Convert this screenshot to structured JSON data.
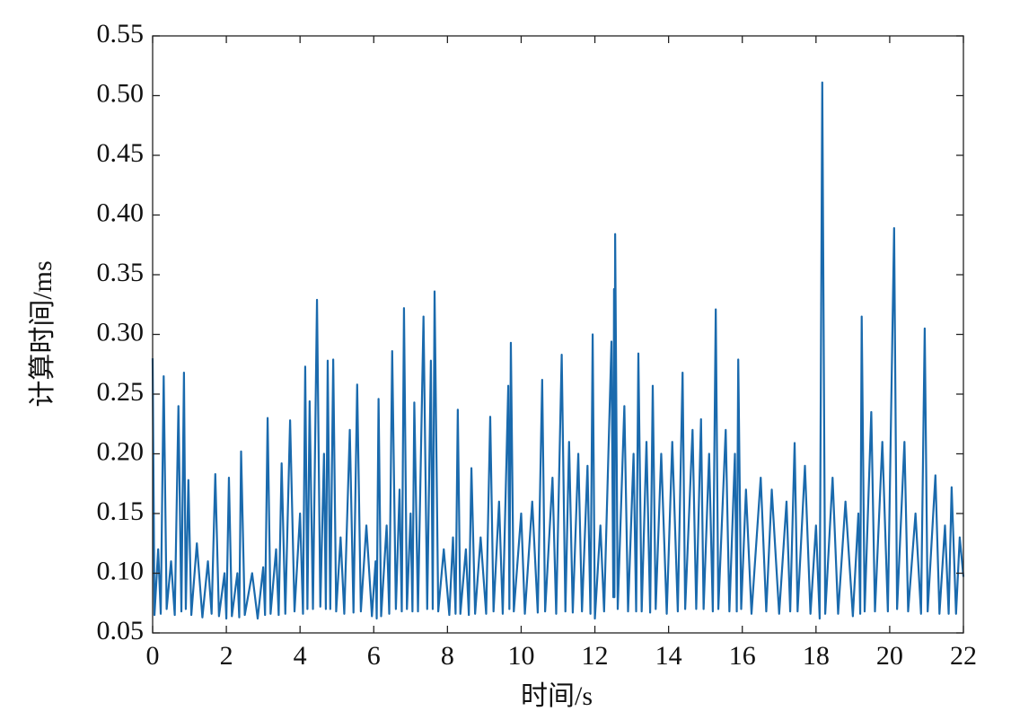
{
  "chart_data": {
    "type": "line",
    "x_label": "时间/s",
    "y_label": "计算时间/ms",
    "x": [
      0,
      0.05,
      0.15,
      0.22,
      0.3,
      0.38,
      0.5,
      0.6,
      0.7,
      0.78,
      0.85,
      0.9,
      0.97,
      1.05,
      1.2,
      1.35,
      1.5,
      1.6,
      1.7,
      1.8,
      1.95,
      2.0,
      2.07,
      2.15,
      2.3,
      2.35,
      2.4,
      2.5,
      2.7,
      2.85,
      3.0,
      3.05,
      3.12,
      3.2,
      3.35,
      3.42,
      3.5,
      3.6,
      3.73,
      3.85,
      4.0,
      4.08,
      4.14,
      4.2,
      4.26,
      4.35,
      4.46,
      4.55,
      4.65,
      4.7,
      4.75,
      4.82,
      4.9,
      4.98,
      5.1,
      5.2,
      5.35,
      5.45,
      5.55,
      5.65,
      5.8,
      5.95,
      6.05,
      6.08,
      6.13,
      6.2,
      6.35,
      6.42,
      6.5,
      6.6,
      6.7,
      6.76,
      6.82,
      6.9,
      7.0,
      7.05,
      7.1,
      7.2,
      7.35,
      7.45,
      7.55,
      7.6,
      7.65,
      7.75,
      7.9,
      8.05,
      8.15,
      8.22,
      8.28,
      8.35,
      8.5,
      8.58,
      8.65,
      8.75,
      8.9,
      9.05,
      9.16,
      9.25,
      9.4,
      9.5,
      9.65,
      9.68,
      9.72,
      9.8,
      10.0,
      10.1,
      10.3,
      10.45,
      10.57,
      10.65,
      10.85,
      10.95,
      11.1,
      11.2,
      11.3,
      11.4,
      11.55,
      11.65,
      11.8,
      11.88,
      11.94,
      12.0,
      12.15,
      12.25,
      12.45,
      12.5,
      12.52,
      12.53,
      12.55,
      12.62,
      12.8,
      12.9,
      13.05,
      13.12,
      13.18,
      13.27,
      13.4,
      13.5,
      13.57,
      13.65,
      13.8,
      13.95,
      14.1,
      14.25,
      14.38,
      14.45,
      14.65,
      14.75,
      14.88,
      14.95,
      15.1,
      15.2,
      15.28,
      15.35,
      15.55,
      15.65,
      15.8,
      15.85,
      15.89,
      15.97,
      16.1,
      16.25,
      16.5,
      16.65,
      16.8,
      17.0,
      17.2,
      17.3,
      17.42,
      17.5,
      17.7,
      17.85,
      18.0,
      18.1,
      18.17,
      18.25,
      18.45,
      18.6,
      18.8,
      19.0,
      19.15,
      19.2,
      19.24,
      19.32,
      19.5,
      19.6,
      19.8,
      19.95,
      20.12,
      20.2,
      20.4,
      20.5,
      20.7,
      20.85,
      20.95,
      21.03,
      21.24,
      21.35,
      21.5,
      21.6,
      21.68,
      21.8,
      21.9,
      22.0
    ],
    "series": [
      {
        "color": "#1a6aad",
        "values": [
          0.28,
          0.065,
          0.12,
          0.066,
          0.265,
          0.07,
          0.11,
          0.065,
          0.24,
          0.068,
          0.268,
          0.07,
          0.178,
          0.065,
          0.125,
          0.063,
          0.11,
          0.066,
          0.183,
          0.064,
          0.1,
          0.062,
          0.18,
          0.064,
          0.1,
          0.063,
          0.202,
          0.065,
          0.1,
          0.062,
          0.105,
          0.065,
          0.23,
          0.066,
          0.12,
          0.065,
          0.192,
          0.066,
          0.228,
          0.068,
          0.15,
          0.066,
          0.273,
          0.07,
          0.244,
          0.07,
          0.329,
          0.072,
          0.2,
          0.07,
          0.278,
          0.07,
          0.279,
          0.068,
          0.13,
          0.066,
          0.22,
          0.067,
          0.258,
          0.068,
          0.14,
          0.064,
          0.11,
          0.062,
          0.246,
          0.064,
          0.14,
          0.066,
          0.286,
          0.07,
          0.17,
          0.068,
          0.322,
          0.07,
          0.15,
          0.068,
          0.243,
          0.068,
          0.315,
          0.07,
          0.278,
          0.07,
          0.336,
          0.068,
          0.12,
          0.065,
          0.13,
          0.066,
          0.237,
          0.066,
          0.12,
          0.065,
          0.188,
          0.066,
          0.13,
          0.066,
          0.231,
          0.068,
          0.16,
          0.066,
          0.257,
          0.07,
          0.293,
          0.068,
          0.15,
          0.066,
          0.16,
          0.067,
          0.262,
          0.068,
          0.18,
          0.066,
          0.283,
          0.068,
          0.21,
          0.067,
          0.2,
          0.068,
          0.19,
          0.066,
          0.3,
          0.062,
          0.14,
          0.068,
          0.294,
          0.08,
          0.338,
          0.08,
          0.384,
          0.07,
          0.24,
          0.068,
          0.2,
          0.068,
          0.284,
          0.068,
          0.21,
          0.067,
          0.257,
          0.07,
          0.2,
          0.066,
          0.21,
          0.068,
          0.268,
          0.07,
          0.22,
          0.07,
          0.229,
          0.07,
          0.2,
          0.068,
          0.321,
          0.07,
          0.22,
          0.068,
          0.2,
          0.068,
          0.279,
          0.07,
          0.17,
          0.066,
          0.18,
          0.068,
          0.17,
          0.066,
          0.16,
          0.068,
          0.209,
          0.068,
          0.19,
          0.066,
          0.14,
          0.062,
          0.511,
          0.066,
          0.18,
          0.066,
          0.16,
          0.064,
          0.15,
          0.066,
          0.315,
          0.068,
          0.235,
          0.068,
          0.21,
          0.068,
          0.389,
          0.07,
          0.21,
          0.068,
          0.15,
          0.066,
          0.305,
          0.068,
          0.182,
          0.066,
          0.14,
          0.066,
          0.172,
          0.066,
          0.13,
          0.097
        ]
      }
    ],
    "xlim": [
      0,
      22
    ],
    "xticks": [
      0,
      2,
      4,
      6,
      8,
      10,
      12,
      14,
      16,
      18,
      20,
      22
    ],
    "ylim": [
      0.05,
      0.55
    ],
    "yticks": [
      0.05,
      {
        "value": 0.1,
        "label": "0.10"
      },
      0.15,
      {
        "value": 0.2,
        "label": "0.20"
      },
      0.25,
      {
        "value": 0.3,
        "label": "0.30"
      },
      0.35,
      {
        "value": 0.4,
        "label": "0.40"
      },
      0.45,
      {
        "value": 0.5,
        "label": "0.50"
      },
      0.55
    ],
    "grid": false
  }
}
